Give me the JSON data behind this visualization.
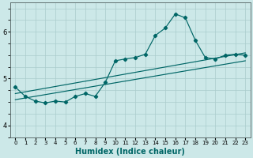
{
  "xlabel": "Humidex (Indice chaleur)",
  "bg_color": "#cce8e8",
  "grid_color": "#aacccc",
  "line_color": "#006666",
  "x_ticks": [
    0,
    1,
    2,
    3,
    4,
    5,
    6,
    7,
    8,
    9,
    10,
    11,
    12,
    13,
    14,
    15,
    16,
    17,
    18,
    19,
    20,
    21,
    22,
    23
  ],
  "ylim": [
    3.88,
    6.62
  ],
  "xlim": [
    -0.5,
    23.5
  ],
  "curve1_x": [
    0,
    1,
    2,
    3,
    4,
    5,
    6,
    7,
    8,
    9,
    10,
    11,
    12,
    13,
    14,
    15,
    16,
    17,
    18,
    19,
    20,
    21,
    22,
    23
  ],
  "curve1_y": [
    4.82,
    4.62,
    4.52,
    4.48,
    4.52,
    4.5,
    4.62,
    4.68,
    4.62,
    4.92,
    5.38,
    5.42,
    5.45,
    5.52,
    5.92,
    6.08,
    6.38,
    6.3,
    5.82,
    5.45,
    5.42,
    5.5,
    5.52,
    5.5
  ],
  "line2_x": [
    0,
    23
  ],
  "line2_y": [
    4.55,
    5.38
  ],
  "line3_x": [
    0,
    23
  ],
  "line3_y": [
    4.68,
    5.55
  ],
  "yticks": [
    4,
    5,
    6
  ],
  "title_fontsize": 7,
  "xlabel_fontsize": 7,
  "tick_fontsize_x": 5,
  "tick_fontsize_y": 6
}
